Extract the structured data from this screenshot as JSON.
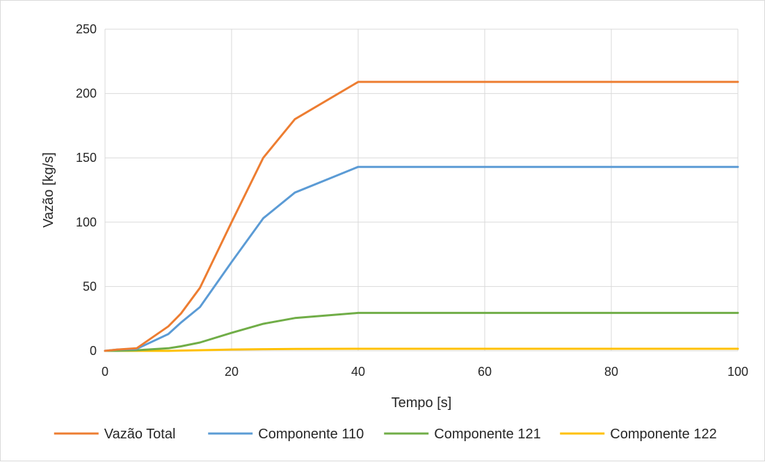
{
  "chart_data": {
    "type": "line",
    "xlabel": "Tempo [s]",
    "ylabel": "Vazão [kg/s]",
    "xlim": [
      0,
      100
    ],
    "ylim": [
      0,
      250
    ],
    "xticks": [
      0,
      20,
      40,
      60,
      80,
      100
    ],
    "yticks": [
      0,
      50,
      100,
      150,
      200,
      250
    ],
    "grid": true,
    "legend_position": "bottom",
    "series": [
      {
        "name": "Vazão Total",
        "color": "#ED7D31",
        "x": [
          0,
          2,
          5,
          10,
          12,
          15,
          20,
          25,
          30,
          40,
          100
        ],
        "y": [
          0,
          1,
          2,
          19,
          29,
          49,
          100,
          150,
          180,
          209,
          209
        ]
      },
      {
        "name": "Componente 110",
        "color": "#5B9BD5",
        "x": [
          0,
          2,
          5,
          10,
          12,
          15,
          20,
          25,
          30,
          40,
          100
        ],
        "y": [
          0,
          1,
          1.5,
          13,
          22,
          34,
          69,
          103,
          123,
          143,
          143
        ]
      },
      {
        "name": "Componente 121",
        "color": "#70AD47",
        "x": [
          0,
          2,
          5,
          10,
          12,
          15,
          20,
          25,
          30,
          40,
          100
        ],
        "y": [
          0,
          0,
          0.5,
          2,
          3.5,
          6.5,
          14,
          21,
          25.5,
          29.5,
          29.5
        ]
      },
      {
        "name": "Componente 122",
        "color": "#FFC000",
        "x": [
          0,
          5,
          10,
          15,
          20,
          25,
          30,
          40,
          100
        ],
        "y": [
          0,
          0,
          0,
          0.5,
          1,
          1.3,
          1.5,
          1.6,
          1.6
        ]
      }
    ]
  }
}
